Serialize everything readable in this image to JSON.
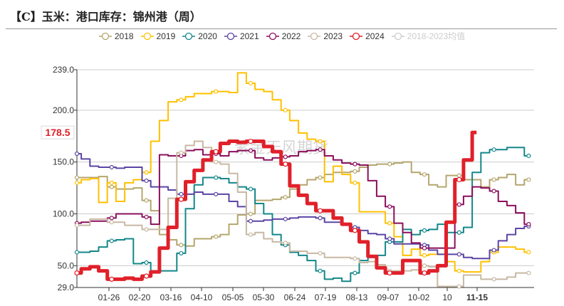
{
  "title": "【C】玉米：港口库存：锦州港（周）",
  "watermark": "紫金天风期货",
  "highlight": {
    "value_label": "178.5",
    "x_label": "11-15",
    "color": "#e0202a"
  },
  "chart_data": {
    "type": "line",
    "title": "【C】玉米：港口库存：锦州港（周）",
    "xlabel": "",
    "ylabel": "",
    "ylim": [
      29.0,
      239.0
    ],
    "y_ticks": [
      "29.0",
      "50.0",
      "100.0",
      "150.0",
      "200.0",
      "239.0"
    ],
    "x_ticks": [
      "01-26",
      "02-20",
      "03-16",
      "04-10",
      "05-05",
      "05-30",
      "06-24",
      "07-19",
      "08-13",
      "09-07",
      "10-02",
      "10",
      "11-15"
    ],
    "grid": true,
    "legend_position": "top",
    "series": [
      {
        "name": "2018",
        "color": "#b5a66e",
        "visible": true,
        "values": [
          135,
          135,
          135,
          136,
          126,
          124,
          124,
          125,
          113,
          103,
          80,
          75,
          70,
          69,
          76,
          76,
          78,
          80,
          90,
          99,
          100,
          113,
          113,
          114,
          116,
          124,
          128,
          133,
          135,
          138,
          140,
          140,
          141,
          145,
          147,
          148,
          148,
          149,
          150,
          140,
          138,
          128,
          126,
          137,
          137,
          133,
          133,
          126,
          133,
          135,
          138,
          128,
          133
        ]
      },
      {
        "name": "2019",
        "color": "#ffc000",
        "visible": true,
        "values": [
          130,
          133,
          134,
          111,
          130,
          112,
          130,
          133,
          140,
          170,
          190,
          208,
          210,
          213,
          216,
          216,
          218,
          218,
          217,
          236,
          226,
          220,
          218,
          210,
          200,
          190,
          178,
          172,
          170,
          131,
          146,
          138,
          130,
          102,
          102,
          102,
          91,
          78,
          60,
          66,
          60,
          61,
          61,
          54,
          45,
          44,
          44,
          54,
          63,
          68,
          68,
          66,
          63
        ]
      },
      {
        "name": "2020",
        "color": "#13878a",
        "visible": true,
        "values": [
          63,
          63,
          64,
          68,
          74,
          75,
          76,
          52,
          53,
          45,
          45,
          45,
          62,
          105,
          128,
          135,
          135,
          134,
          130,
          126,
          124,
          110,
          100,
          80,
          70,
          63,
          60,
          55,
          45,
          37,
          38,
          35,
          43,
          55,
          58,
          60,
          73,
          73,
          85,
          80,
          84,
          85,
          90,
          82,
          82,
          87,
          140,
          159,
          162,
          162,
          164,
          164,
          156
        ]
      },
      {
        "name": "2021",
        "color": "#5b45a5",
        "visible": true,
        "values": [
          158,
          153,
          146,
          145,
          145,
          144,
          145,
          145,
          132,
          126,
          126,
          123,
          119,
          119,
          121,
          119,
          119,
          119,
          112,
          107,
          93,
          93,
          94,
          95,
          95,
          96,
          97,
          97,
          96,
          92,
          92,
          90,
          87,
          84,
          81,
          80,
          76,
          71,
          71,
          71,
          70,
          65,
          61,
          61,
          61,
          58,
          57,
          57,
          65,
          74,
          80,
          86,
          88
        ]
      },
      {
        "name": "2022",
        "color": "#8b0f5c",
        "visible": true,
        "values": [
          91,
          92,
          93,
          93,
          96,
          100,
          100,
          100,
          97,
          90,
          157,
          156,
          156,
          161,
          162,
          157,
          158,
          156,
          160,
          161,
          161,
          154,
          152,
          154,
          155,
          156,
          160,
          161,
          162,
          156,
          152,
          149,
          148,
          147,
          132,
          117,
          107,
          91,
          82,
          72,
          67,
          67,
          67,
          67,
          109,
          117,
          126,
          125,
          122,
          112,
          108,
          101,
          90
        ]
      },
      {
        "name": "2023",
        "color": "#c8b8a3",
        "visible": true,
        "values": [
          89,
          89,
          95,
          95,
          92,
          92,
          89,
          89,
          85,
          85,
          85,
          115,
          159,
          166,
          170,
          164,
          150,
          148,
          139,
          121,
          80,
          82,
          76,
          73,
          72,
          64,
          64,
          62,
          62,
          58,
          58,
          58,
          57,
          53,
          54,
          51,
          45,
          45,
          45,
          46,
          50,
          49,
          30,
          30,
          30,
          41,
          41,
          37,
          37,
          37,
          39,
          43,
          43
        ]
      },
      {
        "name": "2024",
        "color": "#e0202a",
        "visible": true,
        "values": [
          43,
          47,
          49,
          45,
          37,
          37,
          38,
          37,
          40,
          44,
          67,
          87,
          114,
          131,
          142,
          152,
          160,
          168,
          170,
          169,
          170,
          170,
          165,
          160,
          148,
          127,
          118,
          110,
          103,
          103,
          96,
          90,
          84,
          73,
          59,
          48,
          43,
          43,
          55,
          55,
          43,
          45,
          50,
          92,
          133,
          152,
          178.5
        ]
      },
      {
        "name": "2018-2023均值",
        "color": "#cccccc",
        "visible": false,
        "values": []
      }
    ]
  }
}
